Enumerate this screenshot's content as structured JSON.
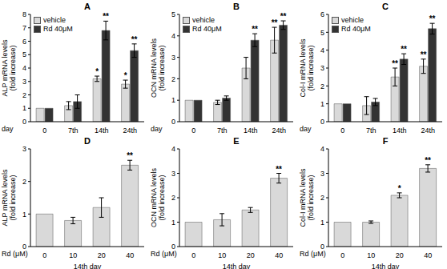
{
  "chart_data": [
    {
      "type": "bar",
      "title": "A",
      "y_label": [
        "ALP mRNA  levels",
        "(fold increase)"
      ],
      "x_label": "day",
      "categories": [
        "0",
        "7th",
        "14th",
        "24th"
      ],
      "ylim": [
        0,
        8
      ],
      "yticks": [
        0,
        1,
        2,
        3,
        4,
        5,
        6,
        7,
        8
      ],
      "legend": "upper left",
      "series": [
        {
          "name": "vehicle",
          "color": "#d9d9d9",
          "values": [
            1,
            1.2,
            3.2,
            2.8
          ],
          "errors": [
            0,
            0.3,
            0.2,
            0.3
          ],
          "significance": [
            null,
            null,
            "*",
            "*"
          ]
        },
        {
          "name": "Rd 40μM",
          "color": "#333333",
          "values": [
            1,
            1.5,
            6.8,
            5.3
          ],
          "errors": [
            0,
            0.5,
            0.7,
            0.5
          ],
          "significance": [
            null,
            null,
            "**",
            "**"
          ]
        }
      ]
    },
    {
      "type": "bar",
      "title": "B",
      "y_label": [
        "OCN mRNA levels",
        "(fold increase)"
      ],
      "x_label": "day",
      "categories": [
        "0",
        "7th",
        "14th",
        "24th"
      ],
      "ylim": [
        0,
        5
      ],
      "yticks": [
        0,
        1,
        2,
        3,
        4,
        5
      ],
      "legend": "upper left",
      "series": [
        {
          "name": "vehicle",
          "color": "#d9d9d9",
          "values": [
            1,
            0.9,
            2.5,
            3.8
          ],
          "errors": [
            0,
            0.1,
            0.5,
            0.6
          ],
          "significance": [
            null,
            null,
            null,
            "**"
          ]
        },
        {
          "name": "Rd 40μM",
          "color": "#333333",
          "values": [
            1,
            1.1,
            3.8,
            4.5
          ],
          "errors": [
            0,
            0.1,
            0.3,
            0.2
          ],
          "significance": [
            null,
            null,
            "**",
            "**"
          ]
        }
      ]
    },
    {
      "type": "bar",
      "title": "C",
      "y_label": [
        "Col-I mRNA levels",
        "(fold increase)"
      ],
      "x_label": "day",
      "categories": [
        "0",
        "7th",
        "14th",
        "24th"
      ],
      "ylim": [
        0,
        6
      ],
      "yticks": [
        0,
        1,
        2,
        3,
        4,
        5,
        6
      ],
      "legend": "upper left",
      "series": [
        {
          "name": "vehicle",
          "color": "#d9d9d9",
          "values": [
            1,
            0.9,
            2.5,
            3.1
          ],
          "errors": [
            0,
            0.5,
            0.5,
            0.4
          ],
          "significance": [
            null,
            null,
            "**",
            "**"
          ]
        },
        {
          "name": "Rd 40μM",
          "color": "#333333",
          "values": [
            1,
            1.1,
            3.5,
            5.2
          ],
          "errors": [
            0,
            0.2,
            0.3,
            0.3
          ],
          "significance": [
            null,
            null,
            "**",
            "**"
          ]
        }
      ]
    },
    {
      "type": "bar",
      "title": "D",
      "y_label": [
        "ALP mRNA levels",
        "(fold increase)"
      ],
      "x_label": "Rd (μM)",
      "subtitle": "14th day",
      "categories": [
        "0",
        "10",
        "20",
        "40"
      ],
      "ylim": [
        0,
        3
      ],
      "yticks": [
        0,
        1,
        2,
        3
      ],
      "series": [
        {
          "color": "#d9d9d9",
          "values": [
            1,
            0.8,
            1.2,
            2.5
          ],
          "errors": [
            0,
            0.1,
            0.3,
            0.15
          ],
          "significance": [
            null,
            null,
            null,
            "**"
          ]
        }
      ]
    },
    {
      "type": "bar",
      "title": "E",
      "y_label": [
        "OCN mRNA levels",
        "(fold increase)"
      ],
      "x_label": "Rd (μM)",
      "subtitle": "14th day",
      "categories": [
        "0",
        "10",
        "20",
        "40"
      ],
      "ylim": [
        0,
        4
      ],
      "yticks": [
        0,
        1,
        2,
        3,
        4
      ],
      "series": [
        {
          "color": "#d9d9d9",
          "values": [
            1,
            1.1,
            1.5,
            2.8
          ],
          "errors": [
            0,
            0.25,
            0.1,
            0.2
          ],
          "significance": [
            null,
            null,
            null,
            "**"
          ]
        }
      ]
    },
    {
      "type": "bar",
      "title": "F",
      "y_label": [
        "Col-I mRNA levels",
        "(fold increase)"
      ],
      "x_label": "Rd (μM)",
      "subtitle": "14th day",
      "categories": [
        "0",
        "10",
        "20",
        "40"
      ],
      "ylim": [
        0,
        4
      ],
      "yticks": [
        0,
        1,
        2,
        3,
        4
      ],
      "series": [
        {
          "color": "#d9d9d9",
          "values": [
            1,
            1,
            2.1,
            3.2
          ],
          "errors": [
            0,
            0.05,
            0.1,
            0.15
          ],
          "significance": [
            null,
            null,
            "*",
            "**"
          ]
        }
      ]
    }
  ]
}
